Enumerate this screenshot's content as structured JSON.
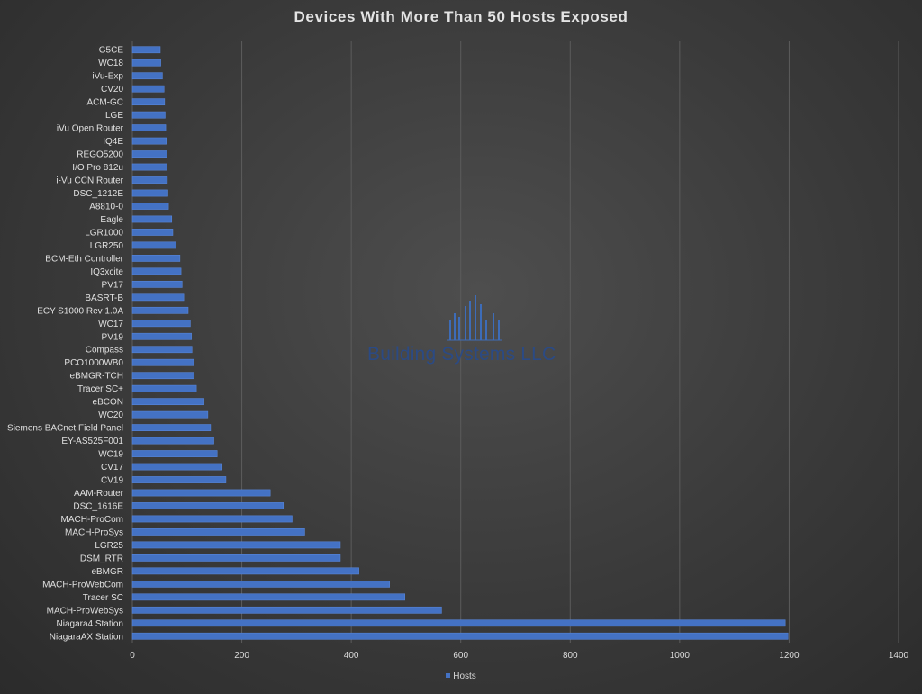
{
  "chart_data": {
    "type": "bar",
    "orientation": "horizontal",
    "title": "Devices With More Than 50 Hosts Exposed",
    "categories": [
      "G5CE",
      "WC18",
      "iVu-Exp",
      "CV20",
      "ACM-GC",
      "LGE",
      "iVu Open Router",
      "IQ4E",
      "REGO5200",
      "I/O Pro 812u",
      "i-Vu CCN Router",
      "DSC_1212E",
      "A8810-0",
      "Eagle",
      "LGR1000",
      "LGR250",
      "BCM-Eth Controller",
      "IQ3xcite",
      "PV17",
      "BASRT-B",
      "ECY-S1000 Rev 1.0A",
      "WC17",
      "PV19",
      "Compass",
      "PCO1000WB0",
      "eBMGR-TCH",
      "Tracer SC+",
      "eBCON",
      "WC20",
      "Siemens BACnet Field Panel",
      "EY-AS525F001",
      "WC19",
      "CV17",
      "CV19",
      "AAM-Router",
      "DSC_1616E",
      "MACH-ProCom",
      "MACH-ProSys",
      "LGR25",
      "DSM_RTR",
      "eBMGR",
      "MACH-ProWebCom",
      "Tracer SC",
      "MACH-ProWebSys",
      "Niagara4 Station",
      "NiagaraAX Station"
    ],
    "series": [
      {
        "name": "Hosts",
        "color": "#4472c4",
        "values": [
          51,
          52,
          55,
          58,
          59,
          60,
          61,
          62,
          63,
          63,
          64,
          65,
          66,
          72,
          74,
          80,
          87,
          89,
          91,
          94,
          102,
          106,
          108,
          109,
          112,
          113,
          117,
          131,
          138,
          143,
          149,
          155,
          164,
          171,
          252,
          276,
          292,
          315,
          380,
          380,
          414,
          470,
          498,
          565,
          1193,
          1198
        ]
      }
    ],
    "xlabel": "",
    "ylabel": "",
    "xlim": [
      0,
      1400
    ],
    "xticks": [
      "0",
      "200",
      "400",
      "600",
      "800",
      "1000",
      "1200",
      "1400"
    ],
    "grid": true,
    "legend_position": "bottom"
  },
  "watermark": {
    "text": "Building Systems LLC"
  }
}
